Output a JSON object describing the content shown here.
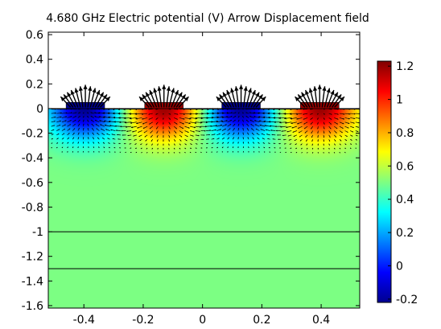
{
  "chart_data": {
    "type": "heatmap",
    "title": "4.680 GHz  Electric potential (V) Arrow  Displacement field",
    "xlabel": "",
    "ylabel": "",
    "x_ticks": [
      "-0.4",
      "-0.2",
      "0",
      "0.2",
      "0.4"
    ],
    "y_ticks": [
      "0.6",
      "0.4",
      "0.2",
      "0",
      "-0.2",
      "-0.4",
      "-0.6",
      "-0.8",
      "-1",
      "-1.2",
      "-1.4",
      "-1.6"
    ],
    "xlim": [
      -0.52,
      0.53
    ],
    "ylim": [
      -1.62,
      0.62
    ],
    "colorbar": {
      "min": -0.22,
      "max": 1.23,
      "ticks": [
        "1.2",
        "1",
        "0.8",
        "0.6",
        "0.4",
        "0.2",
        "0",
        "-0.2"
      ],
      "colormap": "jet"
    },
    "background_value": 0.5,
    "substrate_top": 0.0,
    "layer_boundaries": [
      -1.0,
      -1.3
    ],
    "electrodes": [
      {
        "x": -0.395,
        "width": 0.13,
        "height": 0.05,
        "potential": -0.2
      },
      {
        "x": -0.13,
        "width": 0.13,
        "height": 0.05,
        "potential": 1.2
      },
      {
        "x": 0.13,
        "width": 0.13,
        "height": 0.05,
        "potential": -0.2
      },
      {
        "x": 0.395,
        "width": 0.13,
        "height": 0.05,
        "potential": 1.2
      }
    ],
    "grid": false,
    "legend": "colorbar-right",
    "arrows": "displacement field"
  }
}
